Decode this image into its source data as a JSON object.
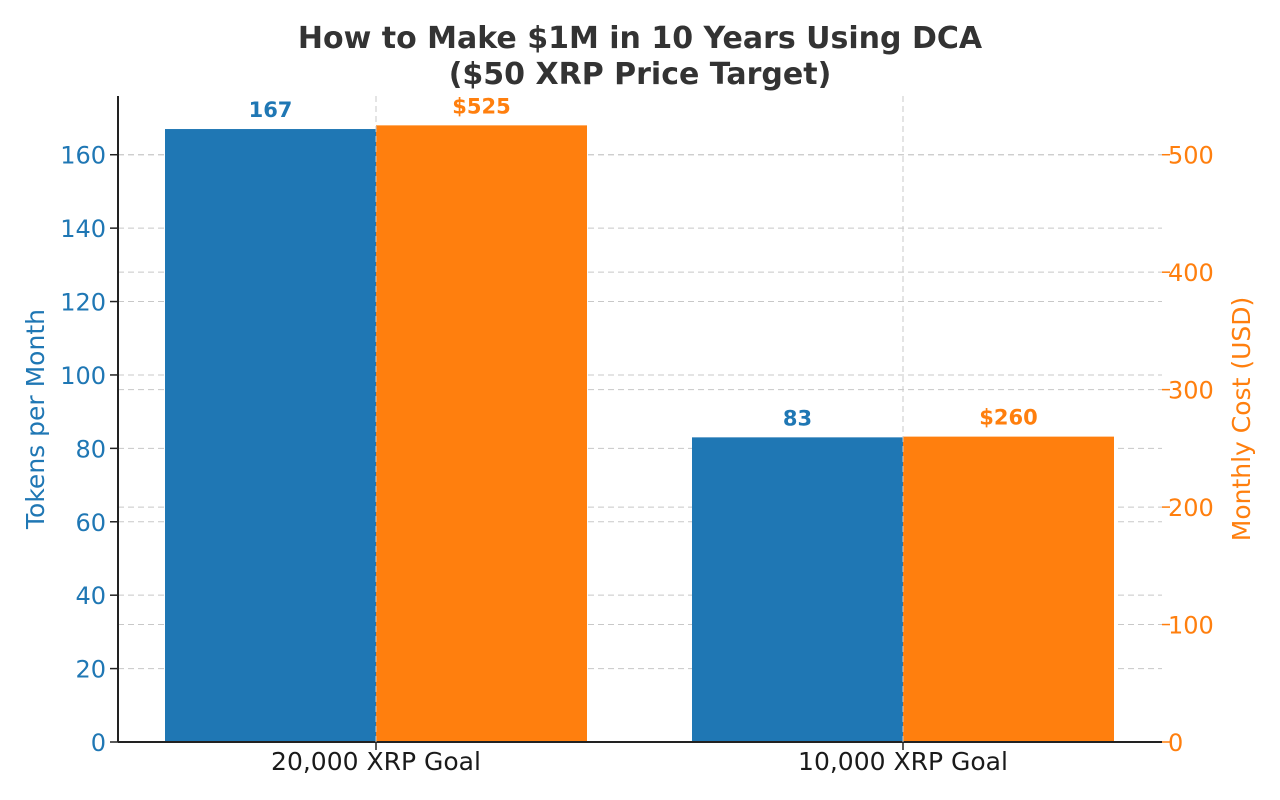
{
  "chart_data": {
    "type": "bar",
    "title_lines": [
      "How to Make $1M in 10 Years Using DCA",
      "($50 XRP Price Target)"
    ],
    "categories": [
      "20,000 XRP Goal",
      "10,000 XRP Goal"
    ],
    "series": [
      {
        "name": "Tokens per Month",
        "axis": "left",
        "values": [
          167,
          83
        ],
        "value_labels": [
          "167",
          "83"
        ],
        "color": "#1f77b4"
      },
      {
        "name": "Monthly Cost (USD)",
        "axis": "right",
        "values": [
          525,
          260
        ],
        "value_labels": [
          "$525",
          "$260"
        ],
        "color": "#ff7f0e"
      }
    ],
    "ylabel": "Tokens per Month",
    "ylabel_right": "Monthly Cost (USD)",
    "ylim": [
      0,
      176
    ],
    "ylim_right": [
      0,
      550
    ],
    "yticks": [
      0,
      20,
      40,
      60,
      80,
      100,
      120,
      140,
      160
    ],
    "yticks_right": [
      0,
      100,
      200,
      300,
      400,
      500
    ],
    "grid": true,
    "legend": "none"
  },
  "colors": {
    "left_axis": "#1f77b4",
    "right_axis": "#ff7f0e",
    "title": "#333333"
  }
}
